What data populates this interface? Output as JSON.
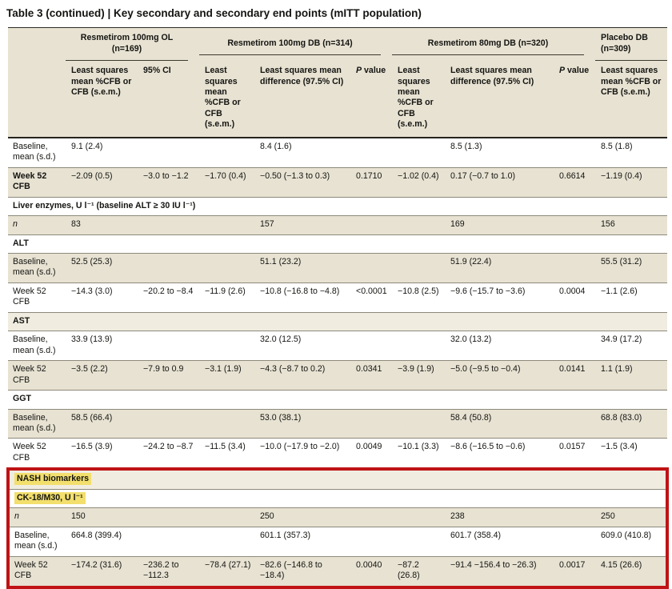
{
  "title": "Table 3 (continued) | Key secondary and secondary end points (mITT population)",
  "colors": {
    "beige": "#e7e2d2",
    "beige_light": "#f0ece0",
    "highlight": "#f2df6d",
    "red_box": "#bf1315"
  },
  "table": {
    "groups": [
      {
        "label": "Resmetirom 100mg OL (n=169)"
      },
      {
        "label": "Resmetirom 100mg DB (n=314)"
      },
      {
        "label": "Resmetirom 80mg DB (n=320)"
      },
      {
        "label": "Placebo DB (n=309)"
      }
    ],
    "sub": {
      "ls_mean": "Least squares mean %CFB or CFB (s.e.m.)",
      "ci95": "95% CI",
      "ls_diff": "Least squares mean difference (97.5% CI)",
      "p_italic": "P",
      "p_rest": " value"
    },
    "rows": [
      {
        "kind": "data",
        "bg": "white",
        "label": "Baseline, mean (s.d.)",
        "labelStyle": "normal",
        "cells": [
          "9.1 (2.4)",
          "",
          "",
          "8.4 (1.6)",
          "",
          "",
          "8.5 (1.3)",
          "",
          "8.5 (1.8)"
        ]
      },
      {
        "kind": "data",
        "bg": "beige",
        "label": "Week 52 CFB",
        "labelStyle": "bold",
        "cells": [
          "−2.09 (0.5)",
          "−3.0 to −1.2",
          "−1.70 (0.4)",
          "−0.50 (−1.3 to 0.3)",
          "0.1710",
          "−1.02 (0.4)",
          "0.17 (−0.7 to 1.0)",
          "0.6614",
          "−1.19 (0.4)"
        ]
      },
      {
        "kind": "section",
        "bg": "white",
        "highlight": false,
        "label": "Liver enzymes, U l⁻¹ (baseline ALT ≥ 30 IU l⁻¹)"
      },
      {
        "kind": "data",
        "bg": "beige",
        "label": "n",
        "labelStyle": "italic",
        "cells": [
          "83",
          "",
          "",
          "157",
          "",
          "",
          "169",
          "",
          "156"
        ]
      },
      {
        "kind": "section",
        "bg": "white",
        "highlight": false,
        "label": "ALT"
      },
      {
        "kind": "data",
        "bg": "beige",
        "label": "Baseline, mean (s.d.)",
        "labelStyle": "normal",
        "cells": [
          "52.5 (25.3)",
          "",
          "",
          "51.1 (23.2)",
          "",
          "",
          "51.9 (22.4)",
          "",
          "55.5 (31.2)"
        ]
      },
      {
        "kind": "data",
        "bg": "white",
        "label": "Week 52 CFB",
        "labelStyle": "normal",
        "cells": [
          "−14.3 (3.0)",
          "−20.2 to −8.4",
          "−11.9 (2.6)",
          "−10.8 (−16.8 to −4.8)",
          "<0.0001",
          "−10.8 (2.5)",
          "−9.6 (−15.7 to −3.6)",
          "0.0004",
          "−1.1 (2.6)"
        ]
      },
      {
        "kind": "section",
        "bg": "beige-light",
        "highlight": false,
        "label": "AST"
      },
      {
        "kind": "data",
        "bg": "white",
        "label": "Baseline, mean (s.d.)",
        "labelStyle": "normal",
        "cells": [
          "33.9 (13.9)",
          "",
          "",
          "32.0 (12.5)",
          "",
          "",
          "32.0 (13.2)",
          "",
          "34.9 (17.2)"
        ]
      },
      {
        "kind": "data",
        "bg": "beige",
        "label": "Week 52 CFB",
        "labelStyle": "normal",
        "cells": [
          "−3.5 (2.2)",
          "−7.9 to 0.9",
          "−3.1 (1.9)",
          "−4.3 (−8.7 to 0.2)",
          "0.0341",
          "−3.9 (1.9)",
          "−5.0 (−9.5 to −0.4)",
          "0.0141",
          "1.1 (1.9)"
        ]
      },
      {
        "kind": "section",
        "bg": "white",
        "highlight": false,
        "label": "GGT"
      },
      {
        "kind": "data",
        "bg": "beige",
        "label": "Baseline, mean (s.d.)",
        "labelStyle": "normal",
        "cells": [
          "58.5 (66.4)",
          "",
          "",
          "53.0 (38.1)",
          "",
          "",
          "58.4 (50.8)",
          "",
          "68.8 (83.0)"
        ]
      },
      {
        "kind": "data",
        "bg": "white",
        "label": "Week 52 CFB",
        "labelStyle": "normal",
        "cells": [
          "−16.5 (3.9)",
          "−24.2 to −8.7",
          "−11.5 (3.4)",
          "−10.0 (−17.9 to −2.0)",
          "0.0049",
          "−10.1 (3.3)",
          "−8.6 (−16.5 to −0.6)",
          "0.0157",
          "−1.5 (3.4)"
        ]
      }
    ],
    "red_box_rows": [
      {
        "kind": "section",
        "bg": "beige-light",
        "highlight": true,
        "label": "NASH biomarkers"
      },
      {
        "kind": "section",
        "bg": "white",
        "highlight": true,
        "label": "CK-18/M30, U l⁻¹"
      },
      {
        "kind": "data",
        "bg": "beige",
        "label": "n",
        "labelStyle": "italic",
        "cells": [
          "150",
          "",
          "",
          "250",
          "",
          "",
          "238",
          "",
          "250"
        ]
      },
      {
        "kind": "data",
        "bg": "white",
        "label": "Baseline, mean (s.d.)",
        "labelStyle": "normal",
        "cells": [
          "664.8 (399.4)",
          "",
          "",
          "601.1 (357.3)",
          "",
          "",
          "601.7 (358.4)",
          "",
          "609.0 (410.8)"
        ]
      },
      {
        "kind": "data",
        "bg": "beige",
        "label": "Week 52 CFB",
        "labelStyle": "normal",
        "cells": [
          "−174.2 (31.6)",
          "−236.2 to −112.3",
          "−78.4 (27.1)",
          "−82.6 (−146.8 to −18.4)",
          "0.0040",
          "−87.2 (26.8)",
          "−91.4 −156.4 to −26.3)",
          "0.0017",
          "4.15 (26.6)"
        ]
      }
    ]
  }
}
